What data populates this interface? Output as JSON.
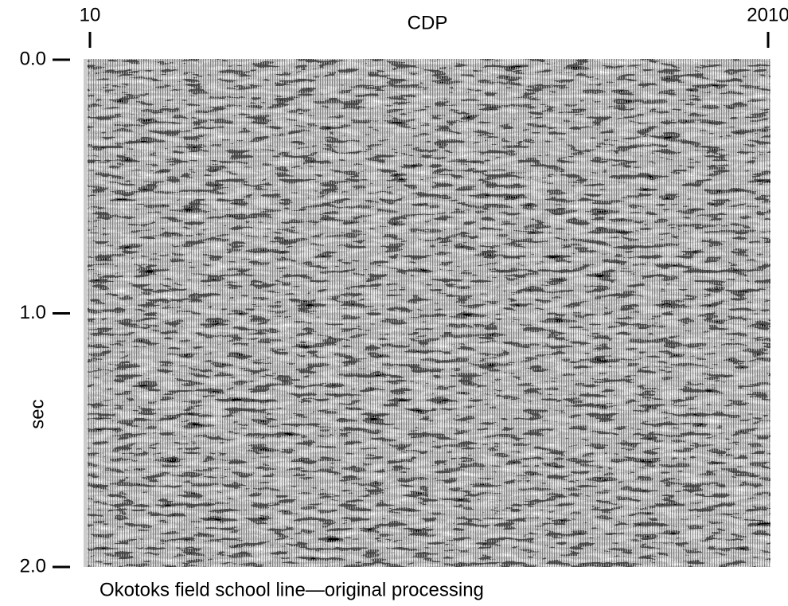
{
  "chart_data": {
    "type": "seismic-section",
    "title": "Okotoks field school line—original processing",
    "x_label": "CDP",
    "y_label": "sec",
    "xlim": [
      10,
      2010
    ],
    "xticks": [
      10,
      2010
    ],
    "ylim": [
      0,
      2
    ],
    "yticks": [
      {
        "value": 0,
        "label": "0.0"
      },
      {
        "value": 1,
        "label": "1.0"
      },
      {
        "value": 2,
        "label": "2.0"
      }
    ]
  }
}
